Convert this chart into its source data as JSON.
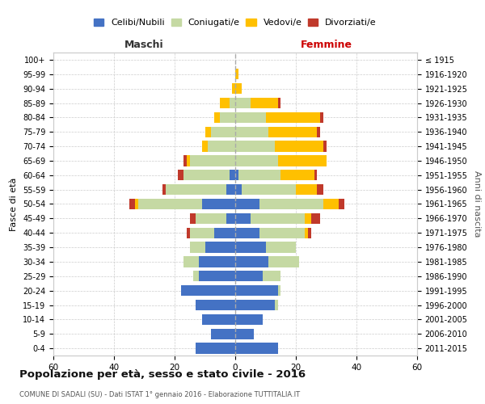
{
  "age_groups": [
    "0-4",
    "5-9",
    "10-14",
    "15-19",
    "20-24",
    "25-29",
    "30-34",
    "35-39",
    "40-44",
    "45-49",
    "50-54",
    "55-59",
    "60-64",
    "65-69",
    "70-74",
    "75-79",
    "80-84",
    "85-89",
    "90-94",
    "95-99",
    "100+"
  ],
  "birth_years": [
    "2011-2015",
    "2006-2010",
    "2001-2005",
    "1996-2000",
    "1991-1995",
    "1986-1990",
    "1981-1985",
    "1976-1980",
    "1971-1975",
    "1966-1970",
    "1961-1965",
    "1956-1960",
    "1951-1955",
    "1946-1950",
    "1941-1945",
    "1936-1940",
    "1931-1935",
    "1926-1930",
    "1921-1925",
    "1916-1920",
    "≤ 1915"
  ],
  "male_celibe": [
    13,
    8,
    11,
    13,
    18,
    12,
    12,
    10,
    7,
    3,
    11,
    3,
    2,
    0,
    0,
    0,
    0,
    0,
    0,
    0,
    0
  ],
  "male_coniugato": [
    0,
    0,
    0,
    0,
    0,
    2,
    5,
    5,
    8,
    10,
    21,
    20,
    15,
    15,
    9,
    8,
    5,
    2,
    0,
    0,
    0
  ],
  "male_vedovo": [
    0,
    0,
    0,
    0,
    0,
    0,
    0,
    0,
    0,
    0,
    1,
    0,
    0,
    1,
    2,
    2,
    2,
    3,
    1,
    0,
    0
  ],
  "male_divorziato": [
    0,
    0,
    0,
    0,
    0,
    0,
    0,
    0,
    1,
    2,
    2,
    1,
    2,
    1,
    0,
    0,
    0,
    0,
    0,
    0,
    0
  ],
  "female_celibe": [
    14,
    6,
    9,
    13,
    14,
    9,
    11,
    10,
    8,
    5,
    8,
    2,
    1,
    0,
    0,
    0,
    0,
    0,
    0,
    0,
    0
  ],
  "female_coniugato": [
    0,
    0,
    0,
    1,
    1,
    6,
    10,
    10,
    15,
    18,
    21,
    18,
    14,
    14,
    13,
    11,
    10,
    5,
    0,
    0,
    0
  ],
  "female_vedovo": [
    0,
    0,
    0,
    0,
    0,
    0,
    0,
    0,
    1,
    2,
    5,
    7,
    11,
    16,
    16,
    16,
    18,
    9,
    2,
    1,
    0
  ],
  "female_divorziato": [
    0,
    0,
    0,
    0,
    0,
    0,
    0,
    0,
    1,
    3,
    2,
    2,
    1,
    0,
    1,
    1,
    1,
    1,
    0,
    0,
    0
  ],
  "colors": {
    "celibe": "#4472C4",
    "coniugato": "#c5d9a3",
    "vedovo": "#ffc000",
    "divorziato": "#c0392b"
  },
  "legend_labels": [
    "Celibi/Nubili",
    "Coniugati/e",
    "Vedovi/e",
    "Divorziati/e"
  ],
  "title": "Popolazione per età, sesso e stato civile - 2016",
  "subtitle": "COMUNE DI SADALI (SU) - Dati ISTAT 1° gennaio 2016 - Elaborazione TUTTITALIA.IT",
  "ylabel_left": "Fasce di età",
  "ylabel_right": "Anni di nascita",
  "xlabel_left": "Maschi",
  "xlabel_right": "Femmine",
  "xlim": 60,
  "background_color": "#ffffff",
  "grid_color": "#cccccc"
}
